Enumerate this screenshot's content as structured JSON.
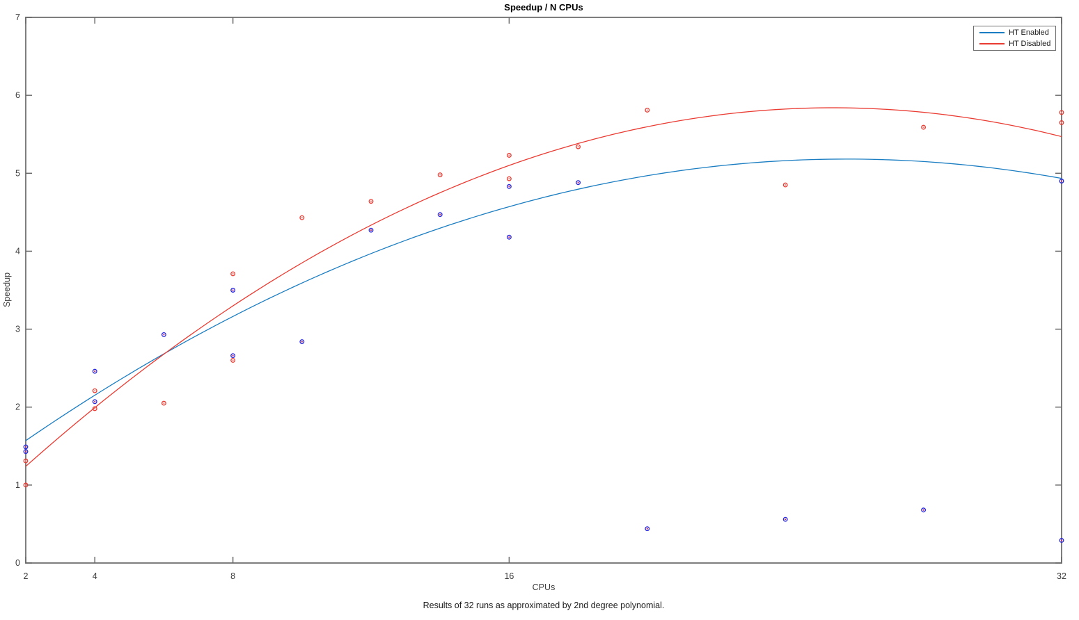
{
  "title": "Speedup / N CPUs",
  "caption": "Results of 32 runs as approximated by 2nd degree polynomial.",
  "chart_data": {
    "type": "scatter",
    "title": "Speedup / N CPUs",
    "xlabel": "CPUs",
    "ylabel": "Speedup",
    "xlim": [
      2,
      32
    ],
    "ylim": [
      0,
      7
    ],
    "xticks": [
      2,
      4,
      8,
      16,
      32
    ],
    "yticks": [
      0,
      1,
      2,
      3,
      4,
      5,
      6,
      7
    ],
    "x_scale": "linear",
    "grid": false,
    "legend_position": "top-right",
    "series": [
      {
        "name": "HT Enabled",
        "line_color": "#1a7dc2",
        "marker_color": "#2626e0",
        "marker_center_color": "#c2356b",
        "points": [
          [
            2,
            1.49
          ],
          [
            2,
            1.43
          ],
          [
            4,
            2.46
          ],
          [
            4,
            2.07
          ],
          [
            6,
            2.93
          ],
          [
            8,
            3.5
          ],
          [
            8,
            2.66
          ],
          [
            10,
            2.84
          ],
          [
            12,
            4.27
          ],
          [
            14,
            4.47
          ],
          [
            16,
            4.83
          ],
          [
            16,
            4.18
          ],
          [
            18,
            4.88
          ],
          [
            20,
            0.44
          ],
          [
            24,
            0.56
          ],
          [
            28,
            0.68
          ],
          [
            32,
            4.9
          ],
          [
            32,
            0.29
          ]
        ],
        "fit": {
          "type": "poly2",
          "coefficients": [
            0.937,
            0.3294,
            -0.00639
          ]
        }
      },
      {
        "name": "HT Disabled",
        "line_color": "#ea3b32",
        "marker_color": "#ea3b32",
        "marker_center_color": "#f08a84",
        "points": [
          [
            2,
            1.31
          ],
          [
            2,
            1.0
          ],
          [
            4,
            2.21
          ],
          [
            4,
            1.98
          ],
          [
            6,
            2.05
          ],
          [
            8,
            3.71
          ],
          [
            8,
            2.6
          ],
          [
            10,
            4.43
          ],
          [
            12,
            4.64
          ],
          [
            14,
            4.98
          ],
          [
            16,
            5.23
          ],
          [
            16,
            4.93
          ],
          [
            18,
            5.34
          ],
          [
            20,
            5.81
          ],
          [
            24,
            4.85
          ],
          [
            28,
            5.59
          ],
          [
            32,
            5.78
          ],
          [
            32,
            5.65
          ]
        ],
        "fit": {
          "type": "poly2",
          "coefficients": [
            0.419,
            0.4273,
            -0.00842
          ]
        }
      }
    ]
  },
  "colors": {
    "background": "#ffffff",
    "axis_box": "#7e7e7e",
    "tick_mark": "#6a6a6a",
    "tick_label": "#3d3d3d",
    "legend_border": "#6f6f6f"
  }
}
